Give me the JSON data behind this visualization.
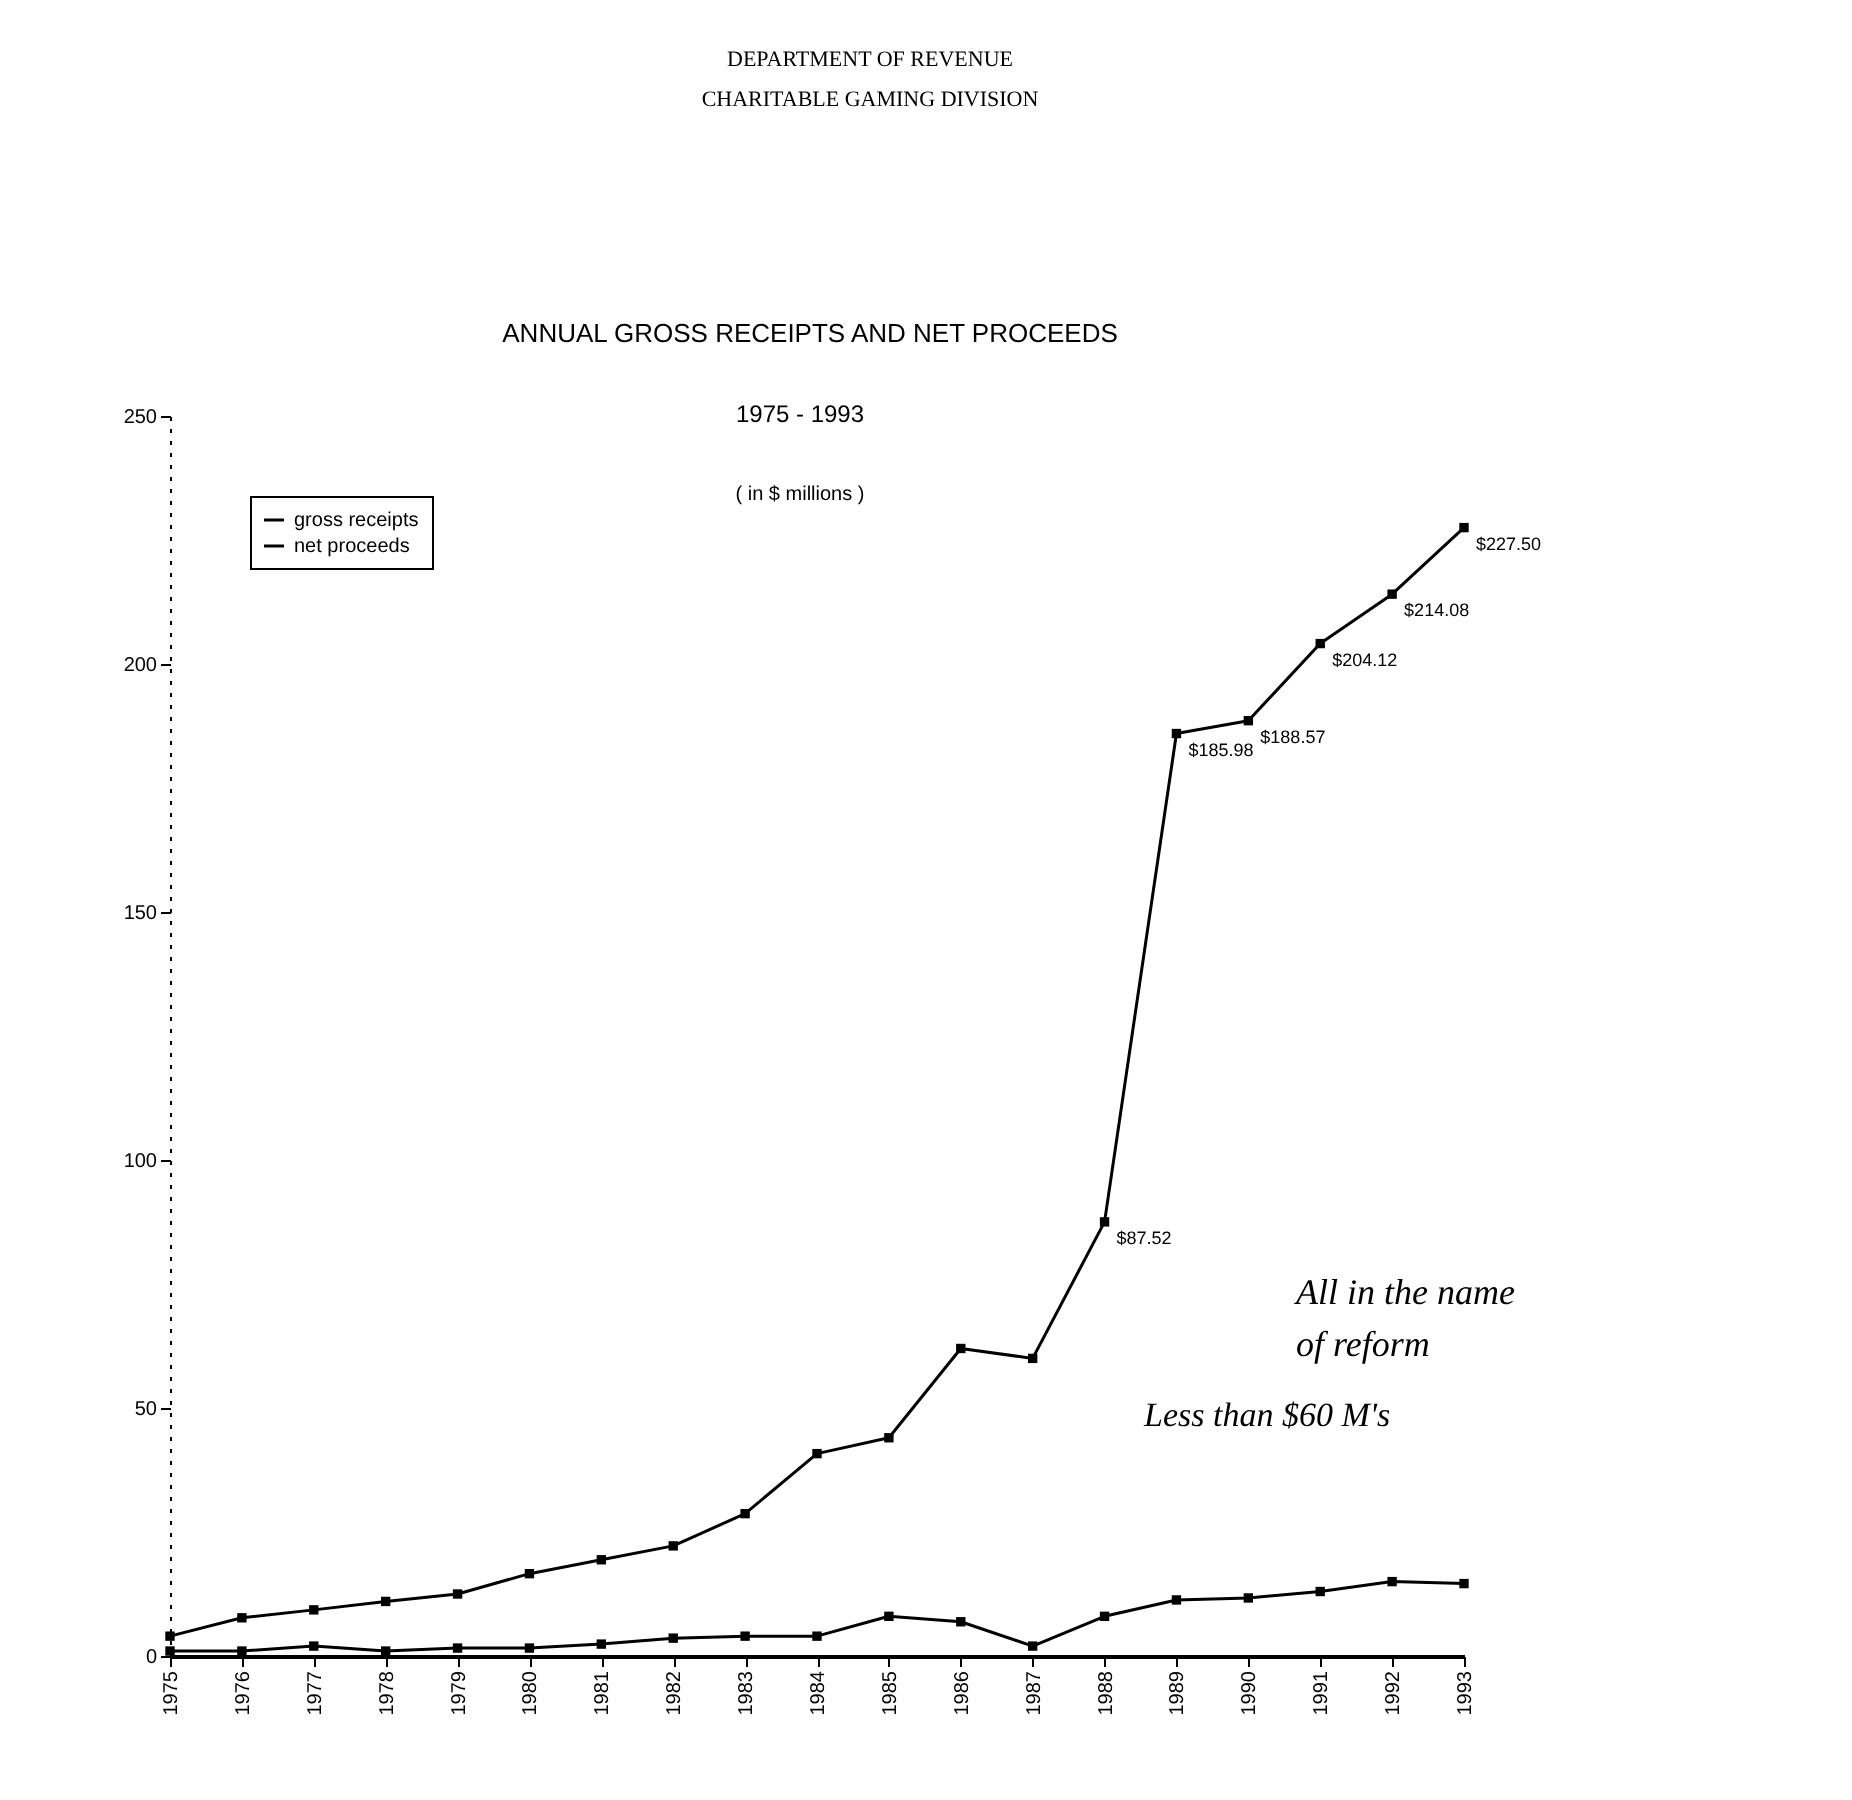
{
  "chart_data": {
    "type": "line",
    "title": "ANNUAL GROSS RECEIPTS AND NET PROCEEDS",
    "subtitle": "1975 - 1993",
    "annotations": [
      "DEPARTMENT OF REVENUE",
      "CHARITABLE GAMING DIVISION",
      "( in $ millions )",
      "All in the name\nof reform",
      "Less than $60 M's"
    ],
    "categories": [
      "1975",
      "1976",
      "1977",
      "1978",
      "1979",
      "1980",
      "1981",
      "1982",
      "1983",
      "1984",
      "1985",
      "1986",
      "1987",
      "1988",
      "1989",
      "1990",
      "1991",
      "1992",
      "1993"
    ],
    "series": [
      {
        "name": "gross receipts",
        "color": "#000000",
        "values": [
          4,
          7.7,
          9.3,
          11,
          12.5,
          16.6,
          19.4,
          22.2,
          28.7,
          40.8,
          44,
          62,
          60,
          87.52,
          185.98,
          188.57,
          204.12,
          214.08,
          227.5
        ],
        "value_labels": [
          null,
          null,
          null,
          null,
          null,
          null,
          null,
          null,
          null,
          null,
          null,
          null,
          null,
          "$87.52",
          "$185.98",
          "$188.57",
          "$204.12",
          "$214.08",
          "$227.50"
        ]
      },
      {
        "name": "net proceeds",
        "color": "#000000",
        "values": [
          1,
          1,
          2,
          1,
          1.6,
          1.6,
          2.4,
          3.6,
          4,
          4,
          8,
          6.9,
          2,
          8,
          11.3,
          11.7,
          13,
          15,
          14.6
        ]
      }
    ],
    "ylim": [
      0,
      250
    ],
    "yticks": [
      0,
      50,
      100,
      150,
      200,
      250
    ],
    "grid": false,
    "legend": "top left",
    "marker": "square",
    "line_style": "solid"
  }
}
